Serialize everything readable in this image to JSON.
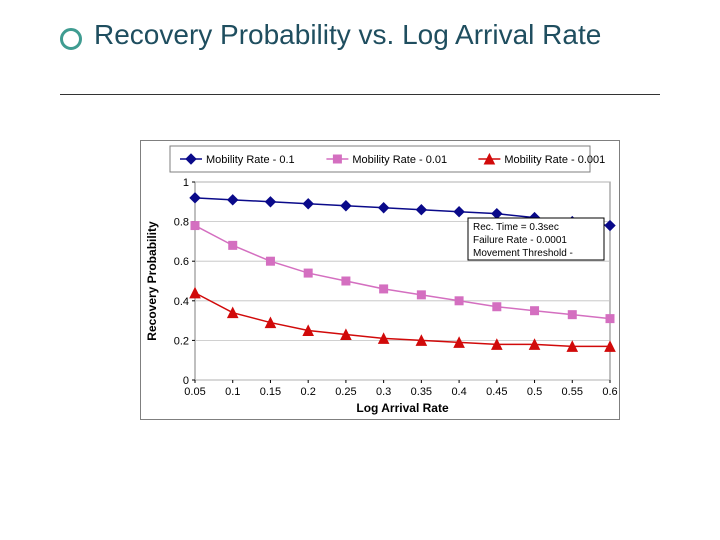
{
  "slide": {
    "title": "Recovery Probability vs. Log Arrival Rate",
    "bullet_ring_color": "#3f9c91",
    "title_color": "#1f4e5f",
    "underline_color": "#333333"
  },
  "chart": {
    "type": "line",
    "background_color": "#ffffff",
    "border_color": "#7f7f7f",
    "grid_color": "#c0c0c0",
    "xaxis": {
      "label": "Log Arrival Rate",
      "min": 0.05,
      "max": 0.6,
      "ticks": [
        0.05,
        0.1,
        0.15,
        0.2,
        0.25,
        0.3,
        0.35,
        0.4,
        0.45,
        0.5,
        0.55,
        0.6
      ]
    },
    "yaxis": {
      "label": "Recovery Probability",
      "min": 0,
      "max": 1,
      "ticks": [
        0,
        0.2,
        0.4,
        0.6,
        0.8,
        1
      ]
    },
    "series": [
      {
        "name": "Mobility Rate - 0.1",
        "color": "#0a0a8a",
        "marker": "diamond",
        "marker_size": 5,
        "line_width": 1.5,
        "x": [
          0.05,
          0.1,
          0.15,
          0.2,
          0.25,
          0.3,
          0.35,
          0.4,
          0.45,
          0.5,
          0.55,
          0.6
        ],
        "y": [
          0.92,
          0.91,
          0.9,
          0.89,
          0.88,
          0.87,
          0.86,
          0.85,
          0.84,
          0.82,
          0.8,
          0.78
        ]
      },
      {
        "name": "Mobility Rate - 0.01",
        "color": "#d46fc0",
        "marker": "square",
        "marker_size": 5,
        "line_width": 1.5,
        "x": [
          0.05,
          0.1,
          0.15,
          0.2,
          0.25,
          0.3,
          0.35,
          0.4,
          0.45,
          0.5,
          0.55,
          0.6
        ],
        "y": [
          0.78,
          0.68,
          0.6,
          0.54,
          0.5,
          0.46,
          0.43,
          0.4,
          0.37,
          0.35,
          0.33,
          0.31
        ]
      },
      {
        "name": "Mobility Rate - 0.001",
        "color": "#d10a0a",
        "marker": "triangle",
        "marker_size": 5,
        "line_width": 1.5,
        "x": [
          0.05,
          0.1,
          0.15,
          0.2,
          0.25,
          0.3,
          0.35,
          0.4,
          0.45,
          0.5,
          0.55,
          0.6
        ],
        "y": [
          0.44,
          0.34,
          0.29,
          0.25,
          0.23,
          0.21,
          0.2,
          0.19,
          0.18,
          0.18,
          0.17,
          0.17
        ]
      }
    ],
    "legend": {
      "position": "top",
      "border_color": "#7f7f7f",
      "background": "#ffffff"
    },
    "info_box": {
      "lines": [
        "Rec. Time = 0.3sec",
        "Failure Rate - 0.0001",
        "Movement Threshold -"
      ],
      "border_color": "#000000",
      "background": "#ffffff"
    },
    "label_fontsize": 12,
    "tick_fontsize": 11,
    "legend_fontsize": 11,
    "info_fontsize": 10
  }
}
